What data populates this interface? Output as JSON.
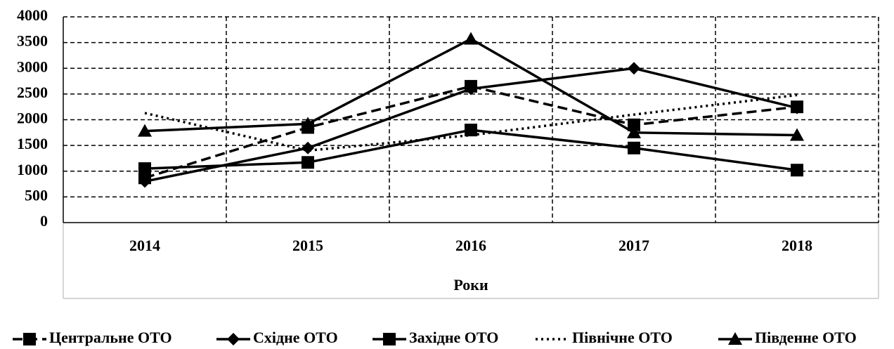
{
  "chart_data": {
    "type": "line",
    "x_label": "Роки",
    "categories": [
      "2014",
      "2015",
      "2016",
      "2017",
      "2018"
    ],
    "series": [
      {
        "name": "Центральне ОТО",
        "color": "#000000",
        "dash": "dashed",
        "marker": "square",
        "values": [
          870,
          1850,
          2650,
          1900,
          2250
        ]
      },
      {
        "name": "Східне ОТО",
        "color": "#000000",
        "dash": "solid",
        "marker": "diamond",
        "values": [
          800,
          1450,
          2600,
          3000,
          2230
        ]
      },
      {
        "name": "Західне ОТО",
        "color": "#000000",
        "dash": "solid",
        "marker": "square",
        "values": [
          1050,
          1170,
          1800,
          1450,
          1020
        ]
      },
      {
        "name": "Північне ОТО",
        "color": "#000000",
        "dash": "dotted",
        "marker": "none",
        "values": [
          2130,
          1400,
          1700,
          2100,
          2480
        ]
      },
      {
        "name": "Південне ОТО",
        "color": "#000000",
        "dash": "solid",
        "marker": "triangle",
        "values": [
          1780,
          1920,
          3570,
          1750,
          1700
        ]
      }
    ],
    "ylim": [
      0,
      4000
    ],
    "yticks": [
      0,
      500,
      1000,
      1500,
      2000,
      2500,
      3000,
      3500,
      4000
    ],
    "grid": true,
    "legend": "bottom"
  }
}
